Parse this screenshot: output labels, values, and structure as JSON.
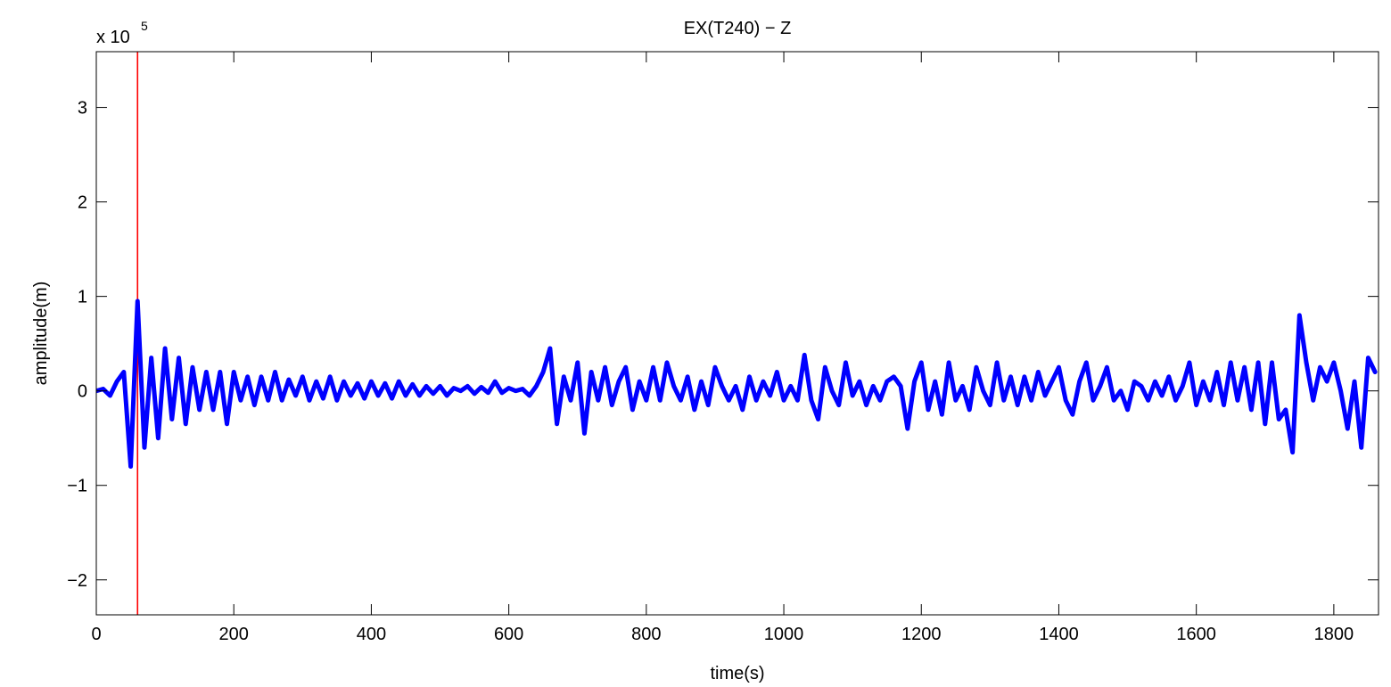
{
  "chart_data": {
    "type": "line",
    "title": "EX(T240) − Z",
    "xlabel": "time(s)",
    "ylabel": "amplitude(m)",
    "y_multiplier": "x 10",
    "y_exponent": "5",
    "xlim": [
      0,
      1865
    ],
    "ylim": [
      -2.37,
      3.59
    ],
    "xticks": [
      0,
      200,
      400,
      600,
      800,
      1000,
      1200,
      1400,
      1600,
      1800
    ],
    "yticks": [
      {
        "value": -2,
        "label": "−2"
      },
      {
        "value": -1,
        "label": "−1"
      },
      0,
      1,
      2,
      3
    ],
    "grid": false,
    "vlines": [
      {
        "x": 60,
        "color": "#ff0000"
      }
    ],
    "x": [
      0,
      10,
      20,
      30,
      40,
      50,
      60,
      70,
      80,
      90,
      100,
      110,
      120,
      130,
      140,
      150,
      160,
      170,
      180,
      190,
      200,
      210,
      220,
      230,
      240,
      250,
      260,
      270,
      280,
      290,
      300,
      310,
      320,
      330,
      340,
      350,
      360,
      370,
      380,
      390,
      400,
      410,
      420,
      430,
      440,
      450,
      460,
      470,
      480,
      490,
      500,
      510,
      520,
      530,
      540,
      550,
      560,
      570,
      580,
      590,
      600,
      610,
      620,
      630,
      640,
      650,
      660,
      670,
      680,
      690,
      700,
      710,
      720,
      730,
      740,
      750,
      760,
      770,
      780,
      790,
      800,
      810,
      820,
      830,
      840,
      850,
      860,
      870,
      880,
      890,
      900,
      910,
      920,
      930,
      940,
      950,
      960,
      970,
      980,
      990,
      1000,
      1010,
      1020,
      1030,
      1040,
      1050,
      1060,
      1070,
      1080,
      1090,
      1100,
      1110,
      1120,
      1130,
      1140,
      1150,
      1160,
      1170,
      1180,
      1190,
      1200,
      1210,
      1220,
      1230,
      1240,
      1250,
      1260,
      1270,
      1280,
      1290,
      1300,
      1310,
      1320,
      1330,
      1340,
      1350,
      1360,
      1370,
      1380,
      1390,
      1400,
      1410,
      1420,
      1430,
      1440,
      1450,
      1460,
      1470,
      1480,
      1490,
      1500,
      1510,
      1520,
      1530,
      1540,
      1550,
      1560,
      1570,
      1580,
      1590,
      1600,
      1610,
      1620,
      1630,
      1640,
      1650,
      1660,
      1670,
      1680,
      1690,
      1700,
      1710,
      1720,
      1730,
      1740,
      1750,
      1760,
      1770,
      1780,
      1790,
      1800,
      1810,
      1820,
      1830,
      1840,
      1850,
      1860
    ],
    "series": [
      {
        "color": "#0000ff",
        "values": [
          0,
          0.02,
          -0.05,
          0.1,
          0.2,
          -0.8,
          0.95,
          -0.6,
          0.35,
          -0.5,
          0.45,
          -0.3,
          0.35,
          -0.35,
          0.25,
          -0.2,
          0.2,
          -0.2,
          0.2,
          -0.35,
          0.2,
          -0.1,
          0.15,
          -0.15,
          0.15,
          -0.1,
          0.2,
          -0.1,
          0.12,
          -0.05,
          0.15,
          -0.1,
          0.1,
          -0.08,
          0.15,
          -0.1,
          0.1,
          -0.05,
          0.08,
          -0.08,
          0.1,
          -0.05,
          0.08,
          -0.08,
          0.1,
          -0.05,
          0.07,
          -0.05,
          0.05,
          -0.03,
          0.05,
          -0.05,
          0.03,
          0,
          0.05,
          -0.03,
          0.04,
          -0.02,
          0.1,
          -0.02,
          0.03,
          0,
          0.02,
          -0.05,
          0.05,
          0.2,
          0.45,
          -0.35,
          0.15,
          -0.1,
          0.3,
          -0.45,
          0.2,
          -0.1,
          0.25,
          -0.15,
          0.1,
          0.25,
          -0.2,
          0.1,
          -0.1,
          0.25,
          -0.1,
          0.3,
          0.05,
          -0.1,
          0.15,
          -0.2,
          0.1,
          -0.15,
          0.25,
          0.05,
          -0.1,
          0.05,
          -0.2,
          0.15,
          -0.1,
          0.1,
          -0.05,
          0.2,
          -0.1,
          0.05,
          -0.1,
          0.38,
          -0.1,
          -0.3,
          0.25,
          0,
          -0.15,
          0.3,
          -0.05,
          0.1,
          -0.15,
          0.05,
          -0.1,
          0.1,
          0.15,
          0.05,
          -0.4,
          0.1,
          0.3,
          -0.2,
          0.1,
          -0.25,
          0.3,
          -0.1,
          0.05,
          -0.2,
          0.25,
          0,
          -0.15,
          0.3,
          -0.1,
          0.15,
          -0.15,
          0.15,
          -0.1,
          0.2,
          -0.05,
          0.1,
          0.25,
          -0.1,
          -0.25,
          0.1,
          0.3,
          -0.1,
          0.05,
          0.25,
          -0.1,
          0,
          -0.2,
          0.1,
          0.05,
          -0.1,
          0.1,
          -0.05,
          0.15,
          -0.1,
          0.05,
          0.3,
          -0.15,
          0.1,
          -0.1,
          0.2,
          -0.15,
          0.3,
          -0.1,
          0.25,
          -0.2,
          0.3,
          -0.35,
          0.3,
          -0.3,
          -0.2,
          -0.65,
          0.8,
          0.3,
          -0.1,
          0.25,
          0.1,
          0.3,
          0,
          -0.4,
          0.1,
          -0.6,
          0.35,
          0.2
        ]
      }
    ]
  }
}
